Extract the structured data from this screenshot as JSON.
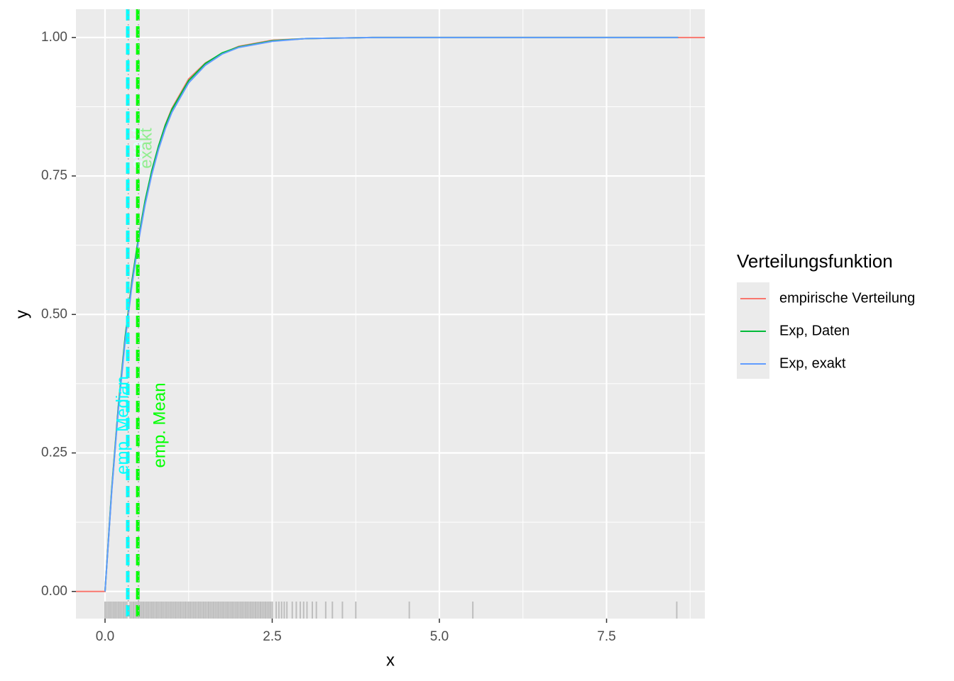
{
  "chart_data": {
    "type": "line",
    "x_label": "x",
    "y_label": "y",
    "legend_title": "Verteilungsfunktion",
    "legend_position": "right",
    "grid": true,
    "x": [
      -0.435,
      0,
      0.1,
      0.2,
      0.3,
      0.4,
      0.5,
      0.6,
      0.7,
      0.8,
      0.9,
      1.0,
      1.25,
      1.5,
      1.75,
      2.0,
      2.5,
      3.0,
      4.0,
      8.57,
      8.97
    ],
    "series": [
      {
        "name": "empirische Verteilung",
        "color": "#F8766D",
        "values": [
          0,
          0,
          0.183,
          0.333,
          0.455,
          0.556,
          0.636,
          0.703,
          0.757,
          0.803,
          0.842,
          0.872,
          0.925,
          0.954,
          0.971,
          0.984,
          0.995,
          0.998,
          1.0,
          1.0,
          1.0
        ]
      },
      {
        "name": "Exp, Daten",
        "color": "#00BA38",
        "values": [
          null,
          0,
          0.185,
          0.335,
          0.458,
          0.558,
          0.639,
          0.706,
          0.76,
          0.804,
          0.841,
          0.87,
          0.922,
          0.953,
          0.972,
          0.983,
          0.994,
          0.998,
          1.0,
          1.0,
          null
        ]
      },
      {
        "name": "Exp, exakt",
        "color": "#619CFF",
        "values": [
          null,
          0,
          0.181,
          0.33,
          0.451,
          0.551,
          0.632,
          0.699,
          0.753,
          0.798,
          0.835,
          0.865,
          0.918,
          0.95,
          0.97,
          0.982,
          0.993,
          0.998,
          1.0,
          1.0,
          null
        ]
      }
    ],
    "vlines": [
      {
        "label": "emp. Median",
        "x": 0.34,
        "color": "#00FFFF",
        "style": "dashed"
      },
      {
        "label": "exakt",
        "x": 0.347,
        "color": "#E0FFFF",
        "style": "dotted"
      },
      {
        "label": "emp. Mean",
        "x": 0.49,
        "color": "#00FF00",
        "style": "dashed"
      },
      {
        "label": "exakt",
        "x": 0.5,
        "color": "#90EE90",
        "style": "dotted"
      }
    ],
    "rug": [
      0,
      0.025,
      0.05,
      0.075,
      0.1,
      0.125,
      0.15,
      0.175,
      0.2,
      0.225,
      0.25,
      0.275,
      0.3,
      0.325,
      0.375,
      0.4,
      0.425,
      0.45,
      0.475,
      0.5,
      0.525,
      0.55,
      0.575,
      0.6,
      0.625,
      0.65,
      0.675,
      0.7,
      0.725,
      0.75,
      0.775,
      0.8,
      0.825,
      0.85,
      0.875,
      0.9,
      0.925,
      0.95,
      0.975,
      1,
      1.025,
      1.05,
      1.075,
      1.1,
      1.125,
      1.15,
      1.175,
      1.2,
      1.225,
      1.25,
      1.275,
      1.3,
      1.325,
      1.35,
      1.375,
      1.4,
      1.425,
      1.45,
      1.475,
      1.5,
      1.525,
      1.55,
      1.575,
      1.6,
      1.625,
      1.65,
      1.675,
      1.7,
      1.725,
      1.75,
      1.775,
      1.8,
      1.825,
      1.85,
      1.875,
      1.9,
      1.925,
      1.95,
      1.975,
      2,
      2.025,
      2.05,
      2.075,
      2.1,
      2.125,
      2.15,
      2.175,
      2.2,
      2.225,
      2.25,
      2.275,
      2.3,
      2.325,
      2.35,
      2.375,
      2.4,
      2.425,
      2.45,
      2.475,
      2.5,
      2.56,
      2.6,
      2.64,
      2.68,
      2.72,
      2.8,
      2.86,
      2.92,
      2.97,
      3.02,
      3.1,
      3.16,
      3.3,
      3.4,
      3.55,
      3.75,
      4.55,
      5.5,
      8.55
    ],
    "rug_color": "#BEBEBE",
    "xlim": [
      -0.435,
      8.97
    ],
    "ylim": [
      -0.049,
      1.051
    ],
    "xticks": [
      {
        "value": 0,
        "label": "0.0"
      },
      {
        "value": 2.5,
        "label": "2.5"
      },
      {
        "value": 5,
        "label": "5.0"
      },
      {
        "value": 7.5,
        "label": "7.5"
      }
    ],
    "yticks": [
      {
        "value": 0,
        "label": "0.00"
      },
      {
        "value": 0.25,
        "label": "0.25"
      },
      {
        "value": 0.5,
        "label": "0.50"
      },
      {
        "value": 0.75,
        "label": "0.75"
      },
      {
        "value": 1,
        "label": "1.00"
      }
    ],
    "x_minor_ticks": [
      1.25,
      3.75,
      6.25,
      8.75
    ],
    "y_minor_ticks": [
      0.125,
      0.375,
      0.625,
      0.875
    ]
  }
}
